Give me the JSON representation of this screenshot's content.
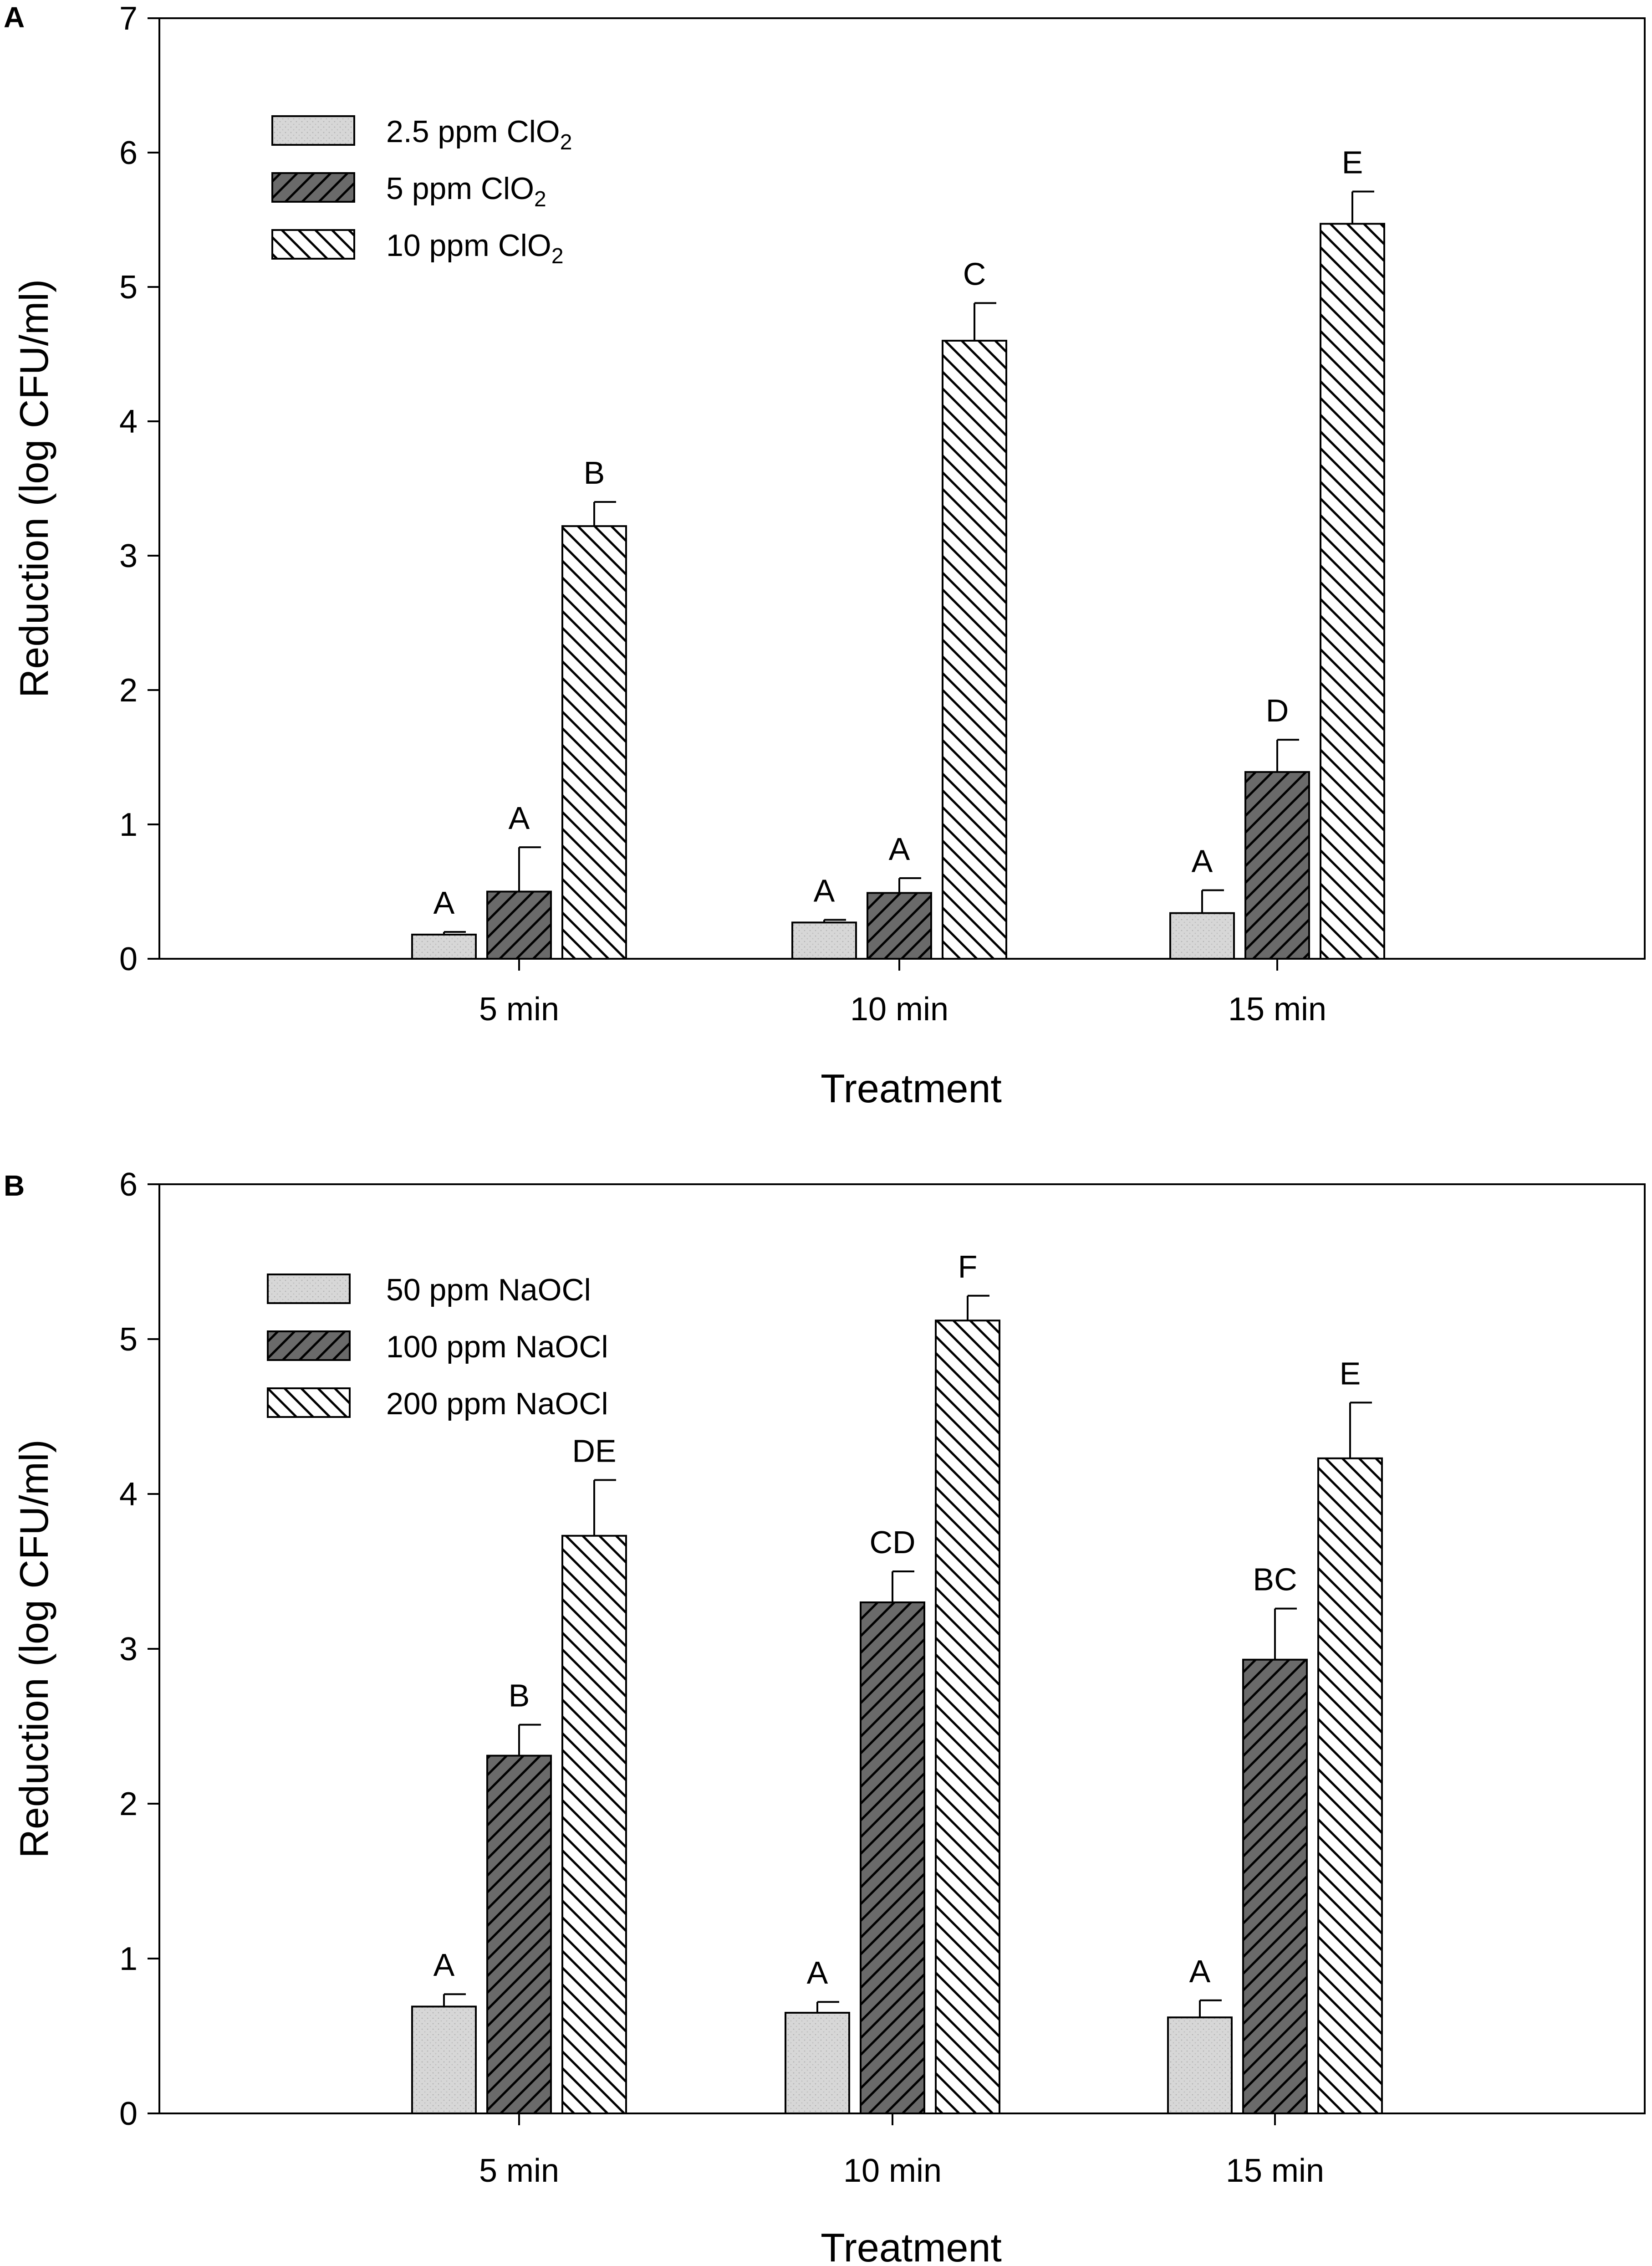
{
  "chart_data": [
    {
      "type": "bar",
      "panel": "A",
      "categories": [
        "5 min",
        "10 min",
        "15 min"
      ],
      "series": [
        {
          "name": "2.5 ppm ClO",
          "subscript": "2",
          "pattern": "dots",
          "values": [
            0.18,
            0.27,
            0.34
          ],
          "errors": [
            0.02,
            0.02,
            0.17
          ],
          "letters": [
            "A",
            "A",
            "A"
          ]
        },
        {
          "name": "5 ppm ClO",
          "subscript": "2",
          "pattern": "forward-hatch",
          "values": [
            0.5,
            0.49,
            1.39
          ],
          "errors": [
            0.33,
            0.11,
            0.24
          ],
          "letters": [
            "A",
            "A",
            "D"
          ]
        },
        {
          "name": "10 ppm ClO",
          "subscript": "2",
          "pattern": "back-hatch",
          "values": [
            3.22,
            4.6,
            5.47
          ],
          "errors": [
            0.18,
            0.28,
            0.24
          ],
          "letters": [
            "B",
            "C",
            "E"
          ]
        }
      ],
      "xlabel": "Treatment",
      "ylabel": "Reduction (log CFU/ml)",
      "ylim": [
        0,
        7
      ],
      "yticks": [
        0,
        1,
        2,
        3,
        4,
        5,
        6,
        7
      ],
      "legend_position": "top-left",
      "grid": false
    },
    {
      "type": "bar",
      "panel": "B",
      "categories": [
        "5 min",
        "10 min",
        "15 min"
      ],
      "series": [
        {
          "name": "50 ppm NaOCl",
          "subscript": "",
          "pattern": "dots",
          "values": [
            0.69,
            0.65,
            0.62
          ],
          "errors": [
            0.08,
            0.07,
            0.11
          ],
          "letters": [
            "A",
            "A",
            "A"
          ]
        },
        {
          "name": "100 ppm NaOCl",
          "subscript": "",
          "pattern": "forward-hatch",
          "values": [
            2.31,
            3.3,
            2.93
          ],
          "errors": [
            0.2,
            0.2,
            0.33
          ],
          "letters": [
            "B",
            "CD",
            "BC"
          ]
        },
        {
          "name": "200 ppm NaOCl",
          "subscript": "",
          "pattern": "back-hatch",
          "values": [
            3.73,
            5.12,
            4.23
          ],
          "errors": [
            0.36,
            0.16,
            0.36
          ],
          "letters": [
            "DE",
            "F",
            "E"
          ]
        }
      ],
      "xlabel": "Treatment",
      "ylabel": "Reduction (log CFU/ml)",
      "ylim": [
        0,
        6
      ],
      "yticks": [
        0,
        1,
        2,
        3,
        4,
        5,
        6
      ],
      "legend_position": "top-left",
      "grid": false
    }
  ],
  "colors": {
    "dots_fill": "#d7d7d7",
    "forward_fill": "#6a6a6a",
    "back_fill": "#ffffff",
    "stroke": "#000000"
  }
}
